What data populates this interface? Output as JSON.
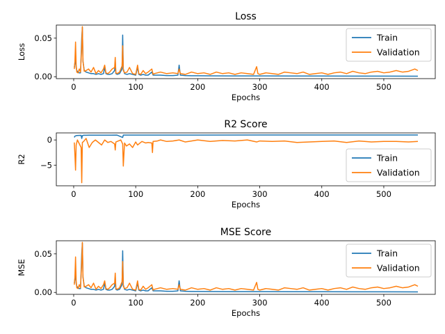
{
  "chart_data": [
    {
      "type": "line",
      "title": "Loss",
      "xlabel": "Epochs",
      "ylabel": "Loss",
      "xlim": [
        -28,
        583
      ],
      "ylim": [
        -0.0025,
        0.067
      ],
      "xticks": [
        0,
        100,
        200,
        300,
        400,
        500
      ],
      "yticks": [
        0.0,
        0.05
      ],
      "ytick_labels": [
        "0.00",
        "0.05"
      ],
      "legend": "top-right",
      "series": [
        {
          "name": "Train",
          "color": "#1f77b4",
          "x": [
            1,
            2,
            3,
            4,
            5,
            7,
            9,
            11,
            13,
            14,
            15,
            17,
            20,
            24,
            28,
            32,
            36,
            40,
            44,
            48,
            50,
            52,
            55,
            58,
            62,
            66,
            67,
            68,
            70,
            74,
            78,
            79,
            80,
            82,
            86,
            90,
            95,
            100,
            103,
            105,
            108,
            112,
            116,
            120,
            126,
            128,
            130,
            140,
            150,
            160,
            168,
            170,
            172,
            180,
            190,
            200,
            220,
            250,
            300,
            350,
            400,
            450,
            500,
            555
          ],
          "y": [
            0.012,
            0.018,
            0.022,
            0.012,
            0.008,
            0.006,
            0.005,
            0.005,
            0.05,
            0.064,
            0.02,
            0.008,
            0.006,
            0.005,
            0.004,
            0.004,
            0.003,
            0.004,
            0.003,
            0.004,
            0.012,
            0.004,
            0.003,
            0.003,
            0.004,
            0.008,
            0.02,
            0.004,
            0.003,
            0.004,
            0.01,
            0.054,
            0.01,
            0.004,
            0.003,
            0.004,
            0.003,
            0.002,
            0.012,
            0.003,
            0.002,
            0.003,
            0.002,
            0.002,
            0.006,
            0.002,
            0.002,
            0.002,
            0.0015,
            0.0015,
            0.002,
            0.015,
            0.002,
            0.0015,
            0.0012,
            0.0012,
            0.0011,
            0.001,
            0.001,
            0.0009,
            0.0009,
            0.0008,
            0.0008,
            0.0007
          ]
        },
        {
          "name": "Validation",
          "color": "#ff7f0e",
          "x": [
            1,
            2,
            3,
            4,
            5,
            7,
            9,
            11,
            13,
            14,
            15,
            17,
            20,
            24,
            28,
            32,
            36,
            40,
            44,
            48,
            50,
            52,
            55,
            58,
            62,
            66,
            67,
            68,
            70,
            74,
            78,
            79,
            80,
            82,
            86,
            90,
            95,
            100,
            103,
            105,
            108,
            112,
            116,
            120,
            126,
            128,
            130,
            140,
            150,
            160,
            168,
            170,
            172,
            180,
            190,
            200,
            210,
            220,
            230,
            240,
            250,
            260,
            270,
            280,
            290,
            295,
            297,
            300,
            310,
            320,
            330,
            340,
            350,
            360,
            370,
            380,
            390,
            400,
            410,
            420,
            430,
            440,
            450,
            460,
            470,
            480,
            490,
            500,
            510,
            520,
            530,
            540,
            550,
            555
          ],
          "y": [
            0.01,
            0.02,
            0.045,
            0.015,
            0.006,
            0.005,
            0.01,
            0.006,
            0.04,
            0.065,
            0.02,
            0.007,
            0.008,
            0.01,
            0.006,
            0.012,
            0.004,
            0.008,
            0.005,
            0.01,
            0.015,
            0.005,
            0.004,
            0.006,
            0.01,
            0.012,
            0.025,
            0.005,
            0.004,
            0.006,
            0.014,
            0.04,
            0.008,
            0.005,
            0.006,
            0.012,
            0.004,
            0.003,
            0.015,
            0.004,
            0.003,
            0.008,
            0.004,
            0.006,
            0.01,
            0.003,
            0.004,
            0.006,
            0.004,
            0.005,
            0.004,
            0.01,
            0.004,
            0.003,
            0.006,
            0.004,
            0.005,
            0.003,
            0.006,
            0.004,
            0.005,
            0.003,
            0.005,
            0.004,
            0.003,
            0.013,
            0.004,
            0.003,
            0.005,
            0.004,
            0.003,
            0.006,
            0.005,
            0.004,
            0.006,
            0.003,
            0.004,
            0.005,
            0.003,
            0.005,
            0.006,
            0.004,
            0.007,
            0.005,
            0.004,
            0.006,
            0.007,
            0.005,
            0.006,
            0.008,
            0.006,
            0.007,
            0.01,
            0.008
          ]
        }
      ]
    },
    {
      "type": "line",
      "title": "R2 Score",
      "xlabel": "Epochs",
      "ylabel": "R2",
      "xlim": [
        -28,
        583
      ],
      "ylim": [
        -9.1,
        1.4
      ],
      "xticks": [
        0,
        100,
        200,
        300,
        400,
        500
      ],
      "yticks": [
        -5,
        0
      ],
      "ytick_labels": [
        "−5",
        "0"
      ],
      "legend": "right",
      "series": [
        {
          "name": "Train",
          "color": "#1f77b4",
          "x": [
            1,
            2,
            3,
            5,
            8,
            12,
            13,
            14,
            16,
            20,
            30,
            40,
            50,
            60,
            70,
            79,
            80,
            90,
            100,
            150,
            200,
            300,
            400,
            500,
            555
          ],
          "y": [
            0.5,
            0.75,
            0.8,
            0.88,
            0.9,
            0.92,
            0.3,
            0.85,
            0.93,
            0.94,
            0.95,
            0.95,
            0.95,
            0.95,
            0.96,
            0.5,
            0.96,
            0.96,
            0.97,
            0.97,
            0.97,
            0.98,
            0.98,
            0.98,
            0.98
          ]
        },
        {
          "name": "Validation",
          "color": "#ff7f0e",
          "x": [
            1,
            2,
            3,
            4,
            6,
            8,
            10,
            12,
            13,
            14,
            16,
            20,
            25,
            30,
            35,
            40,
            45,
            50,
            55,
            60,
            66,
            67,
            68,
            72,
            76,
            79,
            80,
            82,
            85,
            90,
            95,
            100,
            103,
            106,
            110,
            116,
            120,
            126,
            127,
            128,
            135,
            140,
            150,
            160,
            170,
            180,
            190,
            200,
            220,
            240,
            260,
            280,
            295,
            300,
            320,
            340,
            360,
            380,
            400,
            420,
            440,
            460,
            480,
            500,
            520,
            540,
            555
          ],
          "y": [
            -0.5,
            -3,
            -6,
            -1,
            0,
            -0.5,
            -1,
            -1.5,
            -8.5,
            -0.5,
            -0.3,
            0.3,
            -1.5,
            -0.5,
            0,
            -0.5,
            -1,
            0,
            -0.5,
            -0.3,
            -0.8,
            -2,
            -0.4,
            -0.2,
            0,
            -0.8,
            -5.2,
            -0.6,
            -1.2,
            -0.8,
            -1.5,
            -0.4,
            -1,
            -0.7,
            -0.3,
            -0.6,
            -0.5,
            -0.6,
            -2.5,
            -0.3,
            -0.2,
            0,
            -0.3,
            -0.2,
            0,
            -0.4,
            -0.2,
            0,
            -0.3,
            -0.1,
            -0.2,
            0,
            -0.4,
            -0.2,
            -0.3,
            -0.2,
            -0.5,
            -0.4,
            -0.3,
            -0.2,
            -0.5,
            -0.2,
            -0.4,
            -0.3,
            -0.3,
            -0.4,
            -0.3
          ]
        }
      ]
    },
    {
      "type": "line",
      "title": "MSE Score",
      "xlabel": "Epochs",
      "ylabel": "MSE",
      "xlim": [
        -28,
        583
      ],
      "ylim": [
        -0.0025,
        0.067
      ],
      "xticks": [
        0,
        100,
        200,
        300,
        400,
        500
      ],
      "yticks": [
        0.0,
        0.05
      ],
      "ytick_labels": [
        "0.00",
        "0.05"
      ],
      "legend": "top-right",
      "series": [
        {
          "name": "Train",
          "color": "#1f77b4",
          "x": [
            1,
            2,
            3,
            4,
            5,
            7,
            9,
            11,
            13,
            14,
            15,
            17,
            20,
            24,
            28,
            32,
            36,
            40,
            44,
            48,
            50,
            52,
            55,
            58,
            62,
            66,
            67,
            68,
            70,
            74,
            78,
            79,
            80,
            82,
            86,
            90,
            95,
            100,
            103,
            105,
            108,
            112,
            116,
            120,
            126,
            128,
            130,
            140,
            150,
            160,
            168,
            170,
            172,
            180,
            190,
            200,
            220,
            250,
            300,
            350,
            400,
            450,
            500,
            555
          ],
          "y": [
            0.012,
            0.018,
            0.022,
            0.012,
            0.008,
            0.006,
            0.005,
            0.005,
            0.05,
            0.064,
            0.02,
            0.008,
            0.006,
            0.005,
            0.004,
            0.004,
            0.003,
            0.004,
            0.003,
            0.004,
            0.012,
            0.004,
            0.003,
            0.003,
            0.004,
            0.008,
            0.02,
            0.004,
            0.003,
            0.004,
            0.01,
            0.054,
            0.01,
            0.004,
            0.003,
            0.004,
            0.003,
            0.002,
            0.012,
            0.003,
            0.002,
            0.003,
            0.002,
            0.002,
            0.006,
            0.002,
            0.002,
            0.002,
            0.0015,
            0.0015,
            0.002,
            0.015,
            0.002,
            0.0015,
            0.0012,
            0.0012,
            0.0011,
            0.001,
            0.001,
            0.0009,
            0.0009,
            0.0008,
            0.0008,
            0.0007
          ]
        },
        {
          "name": "Validation",
          "color": "#ff7f0e",
          "x": [
            1,
            2,
            3,
            4,
            5,
            7,
            9,
            11,
            13,
            14,
            15,
            17,
            20,
            24,
            28,
            32,
            36,
            40,
            44,
            48,
            50,
            52,
            55,
            58,
            62,
            66,
            67,
            68,
            70,
            74,
            78,
            79,
            80,
            82,
            86,
            90,
            95,
            100,
            103,
            105,
            108,
            112,
            116,
            120,
            126,
            128,
            130,
            140,
            150,
            160,
            168,
            170,
            172,
            180,
            190,
            200,
            210,
            220,
            230,
            240,
            250,
            260,
            270,
            280,
            290,
            295,
            297,
            300,
            310,
            320,
            330,
            340,
            350,
            360,
            370,
            380,
            390,
            400,
            410,
            420,
            430,
            440,
            450,
            460,
            470,
            480,
            490,
            500,
            510,
            520,
            530,
            540,
            550,
            555
          ],
          "y": [
            0.01,
            0.02,
            0.046,
            0.015,
            0.006,
            0.005,
            0.01,
            0.006,
            0.04,
            0.065,
            0.02,
            0.007,
            0.008,
            0.01,
            0.006,
            0.012,
            0.004,
            0.008,
            0.005,
            0.01,
            0.015,
            0.005,
            0.004,
            0.006,
            0.01,
            0.012,
            0.025,
            0.005,
            0.004,
            0.006,
            0.014,
            0.04,
            0.008,
            0.005,
            0.006,
            0.012,
            0.004,
            0.003,
            0.015,
            0.004,
            0.003,
            0.008,
            0.004,
            0.006,
            0.01,
            0.003,
            0.004,
            0.006,
            0.004,
            0.005,
            0.004,
            0.01,
            0.004,
            0.003,
            0.006,
            0.004,
            0.005,
            0.003,
            0.006,
            0.004,
            0.005,
            0.003,
            0.005,
            0.004,
            0.003,
            0.013,
            0.004,
            0.003,
            0.005,
            0.004,
            0.003,
            0.006,
            0.005,
            0.004,
            0.006,
            0.003,
            0.004,
            0.005,
            0.003,
            0.005,
            0.006,
            0.004,
            0.007,
            0.005,
            0.004,
            0.006,
            0.007,
            0.005,
            0.006,
            0.008,
            0.006,
            0.007,
            0.01,
            0.008
          ]
        }
      ]
    }
  ]
}
